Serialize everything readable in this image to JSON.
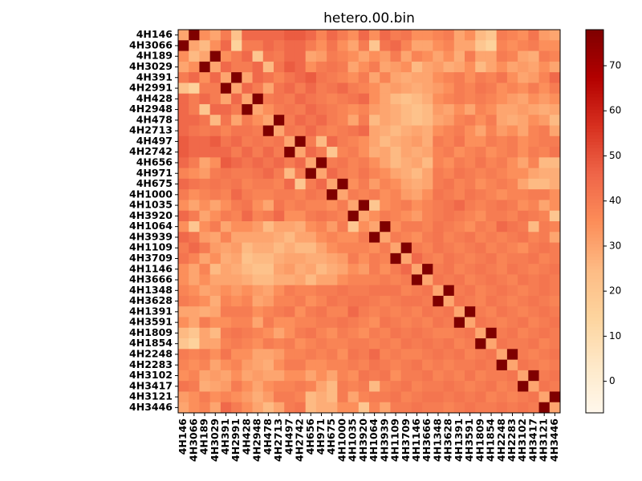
{
  "chart_data": {
    "type": "heatmap",
    "title": "hetero.00.bin",
    "categories": [
      "4H146",
      "4H3066",
      "4H189",
      "4H3029",
      "4H391",
      "4H2991",
      "4H428",
      "4H2948",
      "4H478",
      "4H2713",
      "4H497",
      "4H2742",
      "4H656",
      "4H971",
      "4H675",
      "4H1000",
      "4H1035",
      "4H3920",
      "4H1064",
      "4H3939",
      "4H1109",
      "4H3709",
      "4H1146",
      "4H3666",
      "4H1348",
      "4H3628",
      "4H1391",
      "4H3591",
      "4H1809",
      "4H1854",
      "4H2248",
      "4H2283",
      "4H3102",
      "4H3417",
      "4H3121",
      "4H3446"
    ],
    "values": [
      [
        30,
        78,
        35,
        30,
        40,
        22,
        45,
        45,
        45,
        45,
        48,
        48,
        45,
        38,
        45,
        40,
        35,
        45,
        35,
        45,
        40,
        42,
        35,
        35,
        38,
        40,
        30,
        35,
        25,
        20,
        40,
        38,
        35,
        42,
        32,
        30
      ],
      [
        78,
        30,
        25,
        35,
        45,
        15,
        40,
        40,
        45,
        42,
        45,
        45,
        40,
        35,
        42,
        35,
        30,
        40,
        20,
        42,
        45,
        38,
        30,
        30,
        35,
        38,
        30,
        30,
        20,
        15,
        38,
        35,
        38,
        40,
        35,
        35
      ],
      [
        35,
        25,
        30,
        78,
        35,
        40,
        45,
        20,
        42,
        40,
        45,
        45,
        30,
        32,
        40,
        38,
        35,
        30,
        35,
        32,
        40,
        30,
        38,
        35,
        30,
        35,
        28,
        40,
        30,
        30,
        40,
        38,
        30,
        28,
        40,
        38
      ],
      [
        30,
        35,
        78,
        30,
        45,
        40,
        40,
        45,
        25,
        42,
        48,
        45,
        35,
        40,
        42,
        40,
        30,
        35,
        40,
        30,
        32,
        35,
        25,
        30,
        32,
        28,
        30,
        35,
        25,
        30,
        35,
        30,
        32,
        30,
        35,
        30
      ],
      [
        40,
        45,
        35,
        45,
        30,
        78,
        30,
        45,
        42,
        38,
        42,
        45,
        48,
        42,
        40,
        38,
        35,
        40,
        30,
        38,
        30,
        28,
        30,
        30,
        35,
        38,
        40,
        35,
        40,
        38,
        42,
        35,
        30,
        32,
        38,
        45
      ],
      [
        22,
        15,
        40,
        40,
        78,
        30,
        45,
        40,
        30,
        42,
        45,
        40,
        45,
        40,
        42,
        45,
        40,
        38,
        35,
        30,
        32,
        30,
        28,
        30,
        32,
        35,
        40,
        38,
        42,
        40,
        35,
        38,
        35,
        40,
        35,
        40
      ],
      [
        45,
        40,
        45,
        40,
        30,
        45,
        30,
        78,
        40,
        42,
        40,
        45,
        42,
        40,
        38,
        40,
        42,
        45,
        35,
        30,
        25,
        22,
        25,
        28,
        35,
        38,
        40,
        38,
        40,
        38,
        35,
        32,
        30,
        35,
        32,
        35
      ],
      [
        45,
        40,
        20,
        45,
        45,
        40,
        78,
        30,
        35,
        40,
        42,
        40,
        45,
        42,
        40,
        38,
        35,
        38,
        32,
        30,
        28,
        25,
        22,
        25,
        32,
        30,
        35,
        30,
        38,
        35,
        30,
        30,
        32,
        30,
        28,
        30
      ],
      [
        45,
        45,
        42,
        25,
        42,
        30,
        40,
        35,
        30,
        78,
        40,
        45,
        42,
        45,
        40,
        38,
        30,
        40,
        25,
        30,
        28,
        25,
        22,
        25,
        30,
        32,
        38,
        40,
        35,
        40,
        30,
        28,
        30,
        35,
        32,
        25
      ],
      [
        45,
        42,
        40,
        42,
        38,
        42,
        42,
        40,
        78,
        30,
        42,
        40,
        45,
        40,
        38,
        40,
        42,
        45,
        30,
        28,
        25,
        28,
        30,
        28,
        35,
        38,
        40,
        35,
        30,
        38,
        32,
        35,
        30,
        38,
        40,
        30
      ],
      [
        48,
        45,
        45,
        48,
        42,
        45,
        40,
        42,
        40,
        42,
        30,
        78,
        40,
        25,
        45,
        40,
        38,
        35,
        30,
        25,
        28,
        30,
        32,
        28,
        40,
        38,
        42,
        35,
        35,
        40,
        38,
        40,
        35,
        38,
        40,
        40
      ],
      [
        48,
        45,
        45,
        45,
        45,
        40,
        45,
        40,
        45,
        40,
        78,
        30,
        45,
        40,
        20,
        38,
        40,
        35,
        28,
        30,
        25,
        30,
        28,
        30,
        38,
        40,
        35,
        38,
        40,
        35,
        38,
        40,
        35,
        40,
        38,
        42
      ],
      [
        45,
        40,
        30,
        35,
        48,
        45,
        42,
        45,
        42,
        45,
        40,
        45,
        30,
        78,
        40,
        42,
        38,
        40,
        35,
        30,
        25,
        28,
        30,
        25,
        38,
        35,
        40,
        38,
        42,
        38,
        40,
        35,
        30,
        38,
        25,
        25
      ],
      [
        38,
        35,
        32,
        40,
        42,
        40,
        40,
        42,
        45,
        40,
        25,
        40,
        78,
        30,
        45,
        40,
        38,
        42,
        38,
        35,
        30,
        28,
        25,
        30,
        40,
        38,
        42,
        40,
        38,
        40,
        38,
        35,
        35,
        30,
        28,
        28
      ],
      [
        45,
        42,
        40,
        42,
        40,
        42,
        38,
        40,
        40,
        38,
        45,
        20,
        40,
        45,
        30,
        78,
        35,
        40,
        32,
        38,
        35,
        30,
        28,
        30,
        40,
        42,
        38,
        40,
        35,
        38,
        40,
        38,
        30,
        25,
        25,
        28
      ],
      [
        40,
        35,
        38,
        40,
        38,
        45,
        40,
        38,
        38,
        40,
        40,
        38,
        42,
        40,
        78,
        30,
        40,
        38,
        40,
        35,
        38,
        32,
        30,
        35,
        42,
        40,
        38,
        42,
        40,
        38,
        35,
        38,
        38,
        40,
        40,
        35
      ],
      [
        35,
        30,
        35,
        30,
        35,
        40,
        42,
        35,
        30,
        42,
        38,
        40,
        38,
        38,
        35,
        40,
        30,
        78,
        20,
        35,
        38,
        40,
        35,
        38,
        40,
        42,
        45,
        40,
        38,
        40,
        42,
        40,
        35,
        38,
        30,
        35
      ],
      [
        45,
        40,
        30,
        35,
        40,
        38,
        45,
        38,
        40,
        45,
        35,
        35,
        40,
        42,
        40,
        38,
        78,
        30,
        35,
        40,
        38,
        35,
        32,
        38,
        40,
        42,
        40,
        38,
        35,
        40,
        40,
        38,
        42,
        40,
        38,
        20
      ],
      [
        35,
        20,
        35,
        40,
        30,
        35,
        35,
        32,
        25,
        30,
        30,
        28,
        35,
        38,
        32,
        40,
        20,
        35,
        30,
        78,
        35,
        40,
        40,
        38,
        42,
        40,
        38,
        35,
        40,
        38,
        45,
        42,
        40,
        25,
        40,
        38
      ],
      [
        45,
        42,
        32,
        30,
        38,
        30,
        30,
        30,
        30,
        28,
        25,
        30,
        30,
        35,
        38,
        35,
        35,
        40,
        78,
        30,
        40,
        38,
        35,
        40,
        42,
        38,
        40,
        42,
        38,
        40,
        38,
        40,
        42,
        38,
        40,
        30
      ],
      [
        40,
        45,
        40,
        32,
        30,
        32,
        25,
        28,
        28,
        25,
        28,
        25,
        25,
        30,
        35,
        38,
        38,
        38,
        35,
        40,
        30,
        78,
        40,
        38,
        42,
        40,
        38,
        40,
        42,
        38,
        40,
        38,
        35,
        40,
        42,
        40
      ],
      [
        42,
        38,
        30,
        35,
        28,
        30,
        22,
        25,
        25,
        28,
        30,
        30,
        28,
        28,
        30,
        32,
        40,
        35,
        40,
        38,
        78,
        30,
        45,
        40,
        38,
        42,
        40,
        38,
        40,
        42,
        38,
        40,
        40,
        42,
        38,
        40
      ],
      [
        35,
        30,
        38,
        25,
        30,
        28,
        25,
        22,
        22,
        30,
        32,
        28,
        30,
        25,
        28,
        30,
        35,
        32,
        40,
        35,
        40,
        45,
        30,
        78,
        40,
        42,
        38,
        40,
        42,
        40,
        38,
        42,
        40,
        38,
        40,
        42
      ],
      [
        35,
        30,
        35,
        30,
        30,
        30,
        28,
        25,
        25,
        28,
        28,
        30,
        25,
        30,
        30,
        35,
        38,
        38,
        38,
        40,
        38,
        40,
        78,
        30,
        42,
        40,
        42,
        38,
        40,
        42,
        40,
        38,
        42,
        40,
        42,
        40
      ],
      [
        38,
        35,
        30,
        32,
        35,
        32,
        35,
        32,
        30,
        35,
        40,
        38,
        38,
        40,
        40,
        42,
        40,
        40,
        42,
        42,
        42,
        38,
        40,
        42,
        30,
        78,
        40,
        42,
        38,
        40,
        42,
        40,
        38,
        40,
        42,
        40
      ],
      [
        40,
        38,
        35,
        28,
        38,
        35,
        38,
        30,
        32,
        38,
        38,
        40,
        35,
        38,
        42,
        40,
        42,
        42,
        40,
        38,
        40,
        42,
        42,
        40,
        78,
        30,
        42,
        40,
        38,
        42,
        40,
        38,
        40,
        42,
        40,
        38
      ],
      [
        30,
        30,
        28,
        30,
        40,
        40,
        40,
        35,
        38,
        40,
        42,
        35,
        40,
        42,
        38,
        38,
        45,
        40,
        38,
        40,
        38,
        40,
        38,
        42,
        40,
        42,
        30,
        78,
        40,
        38,
        42,
        40,
        38,
        40,
        42,
        40
      ],
      [
        35,
        30,
        40,
        35,
        35,
        38,
        38,
        30,
        40,
        35,
        35,
        38,
        38,
        40,
        40,
        42,
        40,
        38,
        35,
        42,
        40,
        38,
        40,
        38,
        42,
        40,
        78,
        30,
        42,
        40,
        38,
        40,
        42,
        38,
        40,
        42
      ],
      [
        25,
        20,
        30,
        25,
        40,
        42,
        40,
        38,
        35,
        30,
        35,
        40,
        42,
        38,
        35,
        40,
        38,
        35,
        40,
        38,
        42,
        40,
        42,
        40,
        38,
        38,
        40,
        42,
        30,
        78,
        40,
        42,
        38,
        40,
        42,
        40
      ],
      [
        20,
        15,
        30,
        30,
        38,
        40,
        38,
        35,
        40,
        38,
        40,
        35,
        38,
        40,
        38,
        38,
        40,
        40,
        38,
        40,
        38,
        42,
        40,
        42,
        40,
        42,
        38,
        40,
        78,
        30,
        42,
        40,
        40,
        42,
        38,
        40
      ],
      [
        40,
        38,
        40,
        35,
        42,
        35,
        35,
        30,
        30,
        32,
        38,
        38,
        40,
        38,
        40,
        35,
        42,
        40,
        45,
        38,
        40,
        38,
        38,
        40,
        42,
        40,
        42,
        38,
        40,
        42,
        30,
        78,
        40,
        38,
        40,
        42
      ],
      [
        38,
        35,
        38,
        30,
        35,
        38,
        32,
        30,
        28,
        35,
        40,
        40,
        35,
        35,
        38,
        38,
        40,
        38,
        42,
        40,
        38,
        40,
        42,
        38,
        40,
        38,
        40,
        40,
        42,
        40,
        78,
        30,
        42,
        40,
        38,
        40
      ],
      [
        35,
        38,
        30,
        32,
        30,
        35,
        30,
        32,
        30,
        30,
        35,
        35,
        30,
        35,
        30,
        38,
        35,
        42,
        40,
        42,
        35,
        40,
        40,
        42,
        38,
        40,
        38,
        42,
        38,
        40,
        40,
        42,
        30,
        78,
        40,
        42
      ],
      [
        42,
        40,
        28,
        30,
        32,
        40,
        35,
        30,
        35,
        38,
        38,
        40,
        38,
        30,
        25,
        40,
        38,
        40,
        25,
        38,
        40,
        42,
        38,
        40,
        40,
        42,
        40,
        38,
        40,
        42,
        38,
        40,
        78,
        30,
        42,
        40
      ],
      [
        32,
        35,
        40,
        35,
        38,
        35,
        32,
        28,
        32,
        40,
        40,
        38,
        25,
        28,
        25,
        40,
        30,
        38,
        40,
        40,
        42,
        38,
        40,
        42,
        42,
        40,
        42,
        40,
        42,
        38,
        40,
        38,
        40,
        42,
        30,
        78
      ],
      [
        30,
        35,
        38,
        30,
        45,
        40,
        35,
        30,
        25,
        30,
        40,
        42,
        25,
        28,
        28,
        35,
        35,
        20,
        38,
        30,
        40,
        40,
        42,
        40,
        40,
        38,
        40,
        42,
        40,
        40,
        42,
        40,
        42,
        40,
        78,
        30
      ]
    ],
    "zlim": [
      -7,
      78
    ],
    "zticks": [
      0,
      10,
      20,
      30,
      40,
      50,
      60,
      70
    ],
    "colormap": [
      "#fff7ec",
      "#fee8c8",
      "#fdd49e",
      "#fdbb84",
      "#fc8d59",
      "#ef6548",
      "#d7301f",
      "#b30000",
      "#7f0000"
    ]
  }
}
